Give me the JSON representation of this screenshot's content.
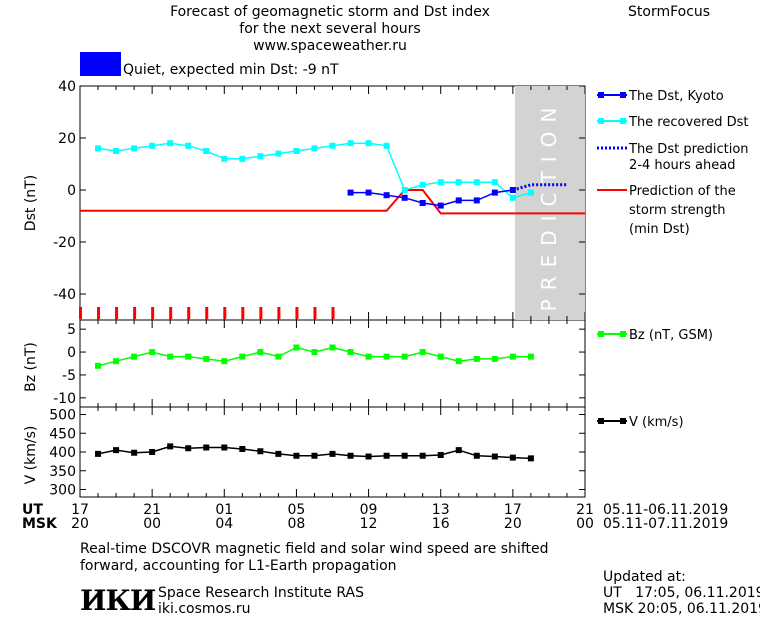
{
  "header": {
    "title_line1": "Forecast of geomagnetic storm and Dst index",
    "title_line2": "for the next several hours",
    "url": "www.spaceweather.ru",
    "brand": "StormFocus",
    "status_text": "Quiet, expected min Dst: -9 nT",
    "status_color": "#0000ff"
  },
  "chart_data": [
    {
      "type": "line",
      "ylabel": "Dst (nT)",
      "ylim": [
        -50,
        40
      ],
      "yticks": [
        "40",
        "20",
        "0",
        "-20",
        "-40"
      ],
      "prediction_label": "PREDICTION",
      "series": [
        {
          "name": "The Dst, Kyoto",
          "color": "#0000ff",
          "x": [
            8,
            9,
            10,
            11,
            12,
            13,
            14,
            15,
            16,
            17
          ],
          "y": [
            -1,
            -1,
            -2,
            -3,
            -5,
            -6,
            -4,
            -4,
            -1,
            0
          ]
        },
        {
          "name": "The recovered Dst",
          "color": "#00ffff",
          "x": [
            -6,
            -5,
            -4,
            -3,
            -2,
            -1,
            0,
            1,
            2,
            3,
            4,
            5,
            6,
            7,
            8,
            9,
            10,
            11,
            12,
            13,
            14,
            15,
            16,
            17,
            18
          ],
          "y": [
            16,
            15,
            16,
            17,
            18,
            17,
            15,
            12,
            12,
            13,
            14,
            15,
            16,
            17,
            18,
            18,
            17,
            0,
            2,
            3,
            3,
            3,
            3,
            -3,
            -1
          ]
        },
        {
          "name": "The Dst prediction 2-4 hours ahead",
          "color": "#0000ff",
          "x": [
            17,
            18,
            19,
            20
          ],
          "y": [
            0,
            2,
            2,
            2
          ]
        },
        {
          "name": "Prediction of the storm strength (min Dst)",
          "color": "#ff0000",
          "x": [
            -7,
            10,
            11,
            12,
            13,
            21
          ],
          "y": [
            -8,
            -8,
            0,
            0,
            -9,
            -9
          ]
        }
      ],
      "legend": [
        "The Dst, Kyoto",
        "The recovered Dst",
        "The Dst prediction",
        "2-4 hours ahead",
        "Prediction of the",
        "storm strength",
        "(min Dst)"
      ]
    },
    {
      "type": "line",
      "ylabel": "Bz (nT)",
      "ylim": [
        -12,
        7
      ],
      "yticks": [
        "5",
        "0",
        "-5",
        "-10"
      ],
      "series": [
        {
          "name": "Bz (nT, GSM)",
          "color": "#00ff00",
          "x": [
            -6,
            -5,
            -4,
            -3,
            -2,
            -1,
            0,
            1,
            2,
            3,
            4,
            5,
            6,
            7,
            8,
            9,
            10,
            11,
            12,
            13,
            14,
            15,
            16,
            17,
            18
          ],
          "y": [
            -3,
            -2,
            -1,
            0,
            -1,
            -1,
            -1.5,
            -2,
            -1,
            0,
            -1,
            1,
            0,
            1,
            0,
            -1,
            -1,
            -1,
            0,
            -1,
            -2,
            -1.5,
            -1.5,
            -1,
            -1
          ]
        }
      ],
      "legend": [
        "Bz (nT, GSM)"
      ]
    },
    {
      "type": "line",
      "ylabel": "V (km/s)",
      "ylim": [
        280,
        520
      ],
      "yticks": [
        "500",
        "450",
        "400",
        "350",
        "300"
      ],
      "series": [
        {
          "name": "V (km/s)",
          "color": "#000000",
          "x": [
            -6,
            -5,
            -4,
            -3,
            -2,
            -1,
            0,
            1,
            2,
            3,
            4,
            5,
            6,
            7,
            8,
            9,
            10,
            11,
            12,
            13,
            14,
            15,
            16,
            17,
            18
          ],
          "y": [
            395,
            405,
            398,
            400,
            415,
            410,
            412,
            412,
            408,
            402,
            395,
            390,
            390,
            395,
            390,
            388,
            390,
            390,
            390,
            392,
            405,
            390,
            388,
            385,
            383
          ]
        }
      ],
      "legend": [
        "V (km/s)"
      ]
    }
  ],
  "x_axis": {
    "ut_label": "UT",
    "msk_label": "MSK",
    "ut_ticks": [
      "17",
      "21",
      "01",
      "05",
      "09",
      "13",
      "17",
      "21"
    ],
    "msk_ticks": [
      "20",
      "00",
      "04",
      "08",
      "12",
      "16",
      "20",
      "00"
    ],
    "ut_range": "05.11-06.11.2019",
    "msk_range": "05.11-07.11.2019"
  },
  "footer": {
    "note_line1": "Real-time DSCOVR magnetic field and solar wind speed are shifted",
    "note_line2": "forward, accounting for L1-Earth propagation",
    "logo": "ИКИ",
    "institute": "Space Research Institute RAS",
    "site": "iki.cosmos.ru",
    "updated_label": "Updated at:",
    "updated_ut": "UT   17:05, 06.11.2019",
    "updated_msk": "MSK 20:05, 06.11.2019"
  }
}
